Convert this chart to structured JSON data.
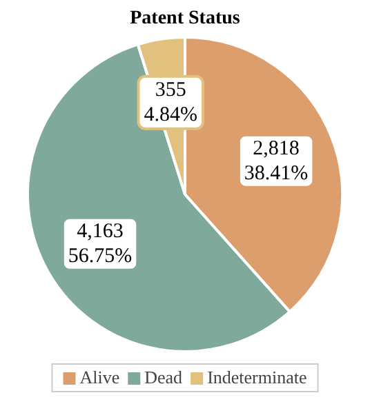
{
  "chart_data": {
    "type": "pie",
    "title": "Patent Status",
    "categories": [
      "Alive",
      "Dead",
      "Indeterminate"
    ],
    "values": [
      2818,
      4163,
      355
    ],
    "colors": [
      "#dc9e6c",
      "#7fa99a",
      "#e2c07e"
    ],
    "value_labels": [
      "2,818\n38.41%",
      "4,163\n56.75%",
      "355\n4.84%"
    ],
    "legend": "bottom"
  }
}
